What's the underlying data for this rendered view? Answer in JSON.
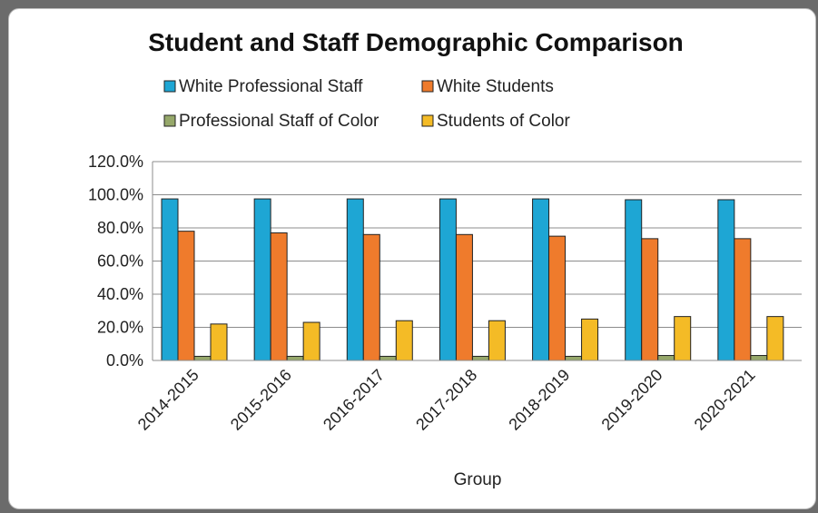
{
  "chart_data": {
    "type": "bar",
    "title": "Student and Staff Demographic Comparison",
    "xlabel": "Group",
    "ylabel": "",
    "ylim": [
      0,
      120
    ],
    "y_ticks": [
      "0.0%",
      "20.0%",
      "40.0%",
      "60.0%",
      "80.0%",
      "100.0%",
      "120.0%"
    ],
    "grid": true,
    "legend_placement": "top",
    "categories": [
      "2014-2015",
      "2015-2016",
      "2016-2017",
      "2017-2018",
      "2018-2019",
      "2019-2020",
      "2020-2021"
    ],
    "series": [
      {
        "name": "White Professional Staff",
        "color": "#1ea6d4",
        "values": [
          97.5,
          97.5,
          97.5,
          97.5,
          97.5,
          97.0,
          97.0
        ]
      },
      {
        "name": "White Students",
        "color": "#ef7b2c",
        "values": [
          78.0,
          77.0,
          76.0,
          76.0,
          75.0,
          73.5,
          73.5
        ]
      },
      {
        "name": "Professional Staff of Color",
        "color": "#96a86a",
        "values": [
          2.5,
          2.5,
          2.5,
          2.5,
          2.5,
          3.0,
          3.0
        ]
      },
      {
        "name": "Students of Color",
        "color": "#f4bb26",
        "values": [
          22.0,
          23.0,
          24.0,
          24.0,
          25.0,
          26.5,
          26.5
        ]
      }
    ]
  }
}
